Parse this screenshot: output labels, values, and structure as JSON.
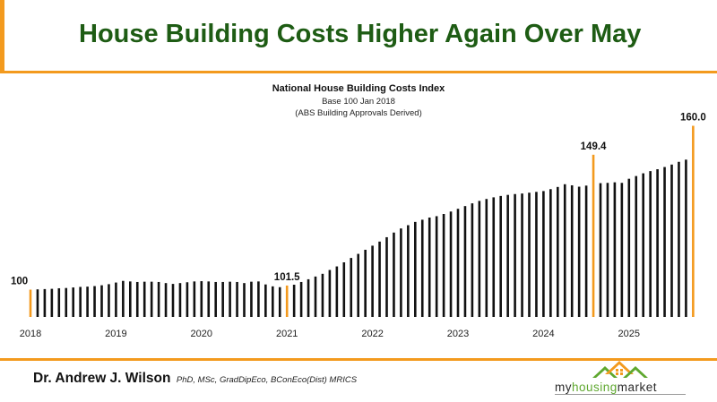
{
  "slide": {
    "title": "House Building Costs Higher Again Over May",
    "author_name": "Dr. Andrew J. Wilson",
    "author_credentials": "PhD, MSc, GradDipEco, BConEco(Dist) MRICS",
    "logo": {
      "text_part1": "my",
      "text_part2": "housing",
      "text_part3": "market",
      "icon": "houses-roof-icon"
    }
  },
  "colors": {
    "accent": "#F39A1E",
    "title_green": "#1E5C14",
    "bar": "#111111",
    "highlight_bar": "#F39A1E",
    "logo_green": "#5FA82F",
    "logo_orange": "#F39A1E"
  },
  "chart_data": {
    "type": "bar",
    "title": "National House Building Costs Index",
    "subtitle": "Base 100 Jan 2018",
    "subtitle2": "(ABS Building Approvals Derived)",
    "xlabel": "",
    "ylabel": "",
    "grid": false,
    "legend": "none",
    "x_tick_labels": [
      "2018",
      "2019",
      "2020",
      "2021",
      "2022",
      "2023",
      "2024",
      "2025"
    ],
    "start": "2018-01",
    "frequency": "monthly",
    "ylim": [
      90,
      162
    ],
    "values": [
      100,
      100.1,
      100.2,
      100.3,
      100.5,
      100.6,
      100.8,
      101.0,
      101.1,
      101.3,
      101.6,
      102.0,
      102.6,
      103.2,
      103.0,
      102.8,
      102.9,
      102.9,
      102.8,
      102.4,
      102.1,
      102.4,
      102.7,
      103.0,
      103.1,
      103.0,
      102.8,
      102.8,
      102.9,
      102.8,
      102.4,
      102.9,
      103.0,
      101.9,
      101.2,
      100.9,
      101.5,
      101.8,
      102.8,
      103.8,
      104.8,
      105.8,
      107.2,
      108.5,
      110.0,
      111.6,
      113.1,
      114.6,
      116.1,
      117.6,
      119.2,
      120.9,
      122.4,
      123.6,
      124.8,
      125.6,
      126.4,
      126.9,
      127.7,
      128.6,
      129.6,
      130.6,
      131.6,
      132.5,
      133.2,
      133.8,
      134.3,
      134.7,
      135.0,
      135.2,
      135.5,
      135.8,
      136.1,
      136.8,
      137.6,
      138.6,
      138.2,
      137.7,
      138.1,
      149.4,
      139.0,
      139.1,
      139.3,
      139.1,
      140.6,
      141.6,
      142.6,
      143.4,
      144.1,
      144.9,
      145.8,
      146.8,
      147.6,
      160.0
    ],
    "highlights": [
      {
        "index": 0,
        "label": "100"
      },
      {
        "index": 36,
        "label": "101.5"
      },
      {
        "index": 79,
        "label": "149.4"
      },
      {
        "index": 93,
        "label": "160.0"
      }
    ]
  }
}
